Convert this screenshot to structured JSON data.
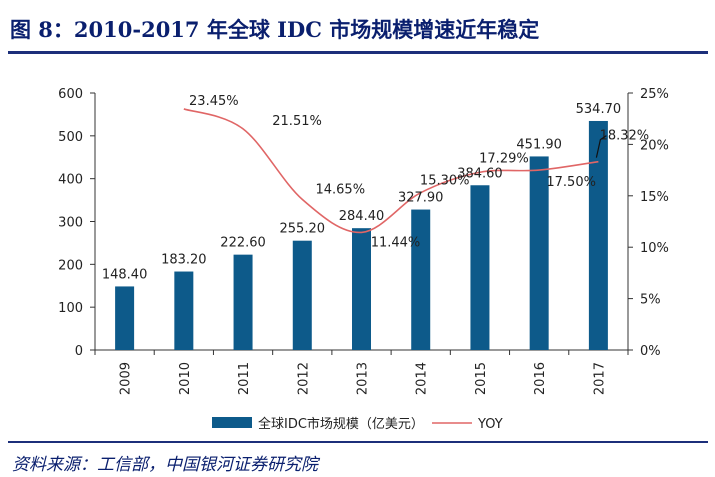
{
  "header": {
    "title": "图 8：2010-2017 年全球 IDC 市场规模增速近年稳定"
  },
  "footer": {
    "source": "资料来源：工信部，中国银河证券研究院"
  },
  "colors": {
    "bar": "#0d5a8a",
    "line": "#e06666",
    "axis": "#333333",
    "text": "#222222"
  },
  "chart_data": {
    "type": "bar",
    "categories": [
      "2009",
      "2010",
      "2011",
      "2012",
      "2013",
      "2014",
      "2015",
      "2016",
      "2017"
    ],
    "series": [
      {
        "name": "全球IDC市场规模（亿美元）",
        "type": "bar",
        "axis": "left",
        "values": [
          148.4,
          183.2,
          222.6,
          255.2,
          284.4,
          327.9,
          384.6,
          451.9,
          534.7
        ],
        "labels": [
          "148.40",
          "183.20",
          "222.60",
          "255.20",
          "284.40",
          "327.90",
          "384.60",
          "451.90",
          "534.70"
        ]
      },
      {
        "name": "YOY",
        "type": "line",
        "axis": "right",
        "values": [
          null,
          23.45,
          21.51,
          14.65,
          11.44,
          15.3,
          17.29,
          17.5,
          18.32
        ],
        "labels": [
          "",
          "23.45%",
          "21.51%",
          "14.65%",
          "11.44%",
          "15.30%",
          "17.29%",
          "17.50%",
          "18.32%"
        ]
      }
    ],
    "y_left": {
      "min": 0,
      "max": 600,
      "ticks": [
        "0",
        "100",
        "200",
        "300",
        "400",
        "500",
        "600"
      ]
    },
    "y_right": {
      "min": 0,
      "max": 25,
      "ticks": [
        "0%",
        "5%",
        "10%",
        "15%",
        "20%",
        "25%"
      ]
    },
    "legend": {
      "position": "bottom"
    },
    "grid": false
  }
}
